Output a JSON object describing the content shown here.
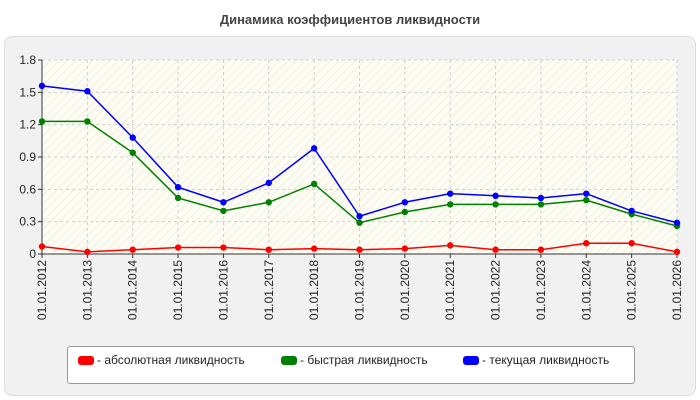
{
  "chart_data": {
    "type": "line",
    "title": "Динамика коэффициентов ликвидности",
    "categories": [
      "01.01.2012",
      "01.01.2013",
      "01.01.2014",
      "01.01.2015",
      "01.01.2016",
      "01.01.2017",
      "01.01.2018",
      "01.01.2019",
      "01.01.2020",
      "01.01.2021",
      "01.01.2022",
      "01.01.2023",
      "01.01.2024",
      "01.01.2025",
      "01.01.2026"
    ],
    "series": [
      {
        "name": "- абсолютная ликвидность",
        "color": "#ff0000",
        "values": [
          0.07,
          0.02,
          0.04,
          0.06,
          0.06,
          0.04,
          0.05,
          0.04,
          0.05,
          0.08,
          0.04,
          0.04,
          0.1,
          0.1,
          0.02
        ]
      },
      {
        "name": "- быстрая ликвидность",
        "color": "#008000",
        "values": [
          1.23,
          1.23,
          0.94,
          0.52,
          0.4,
          0.48,
          0.65,
          0.29,
          0.39,
          0.46,
          0.46,
          0.46,
          0.5,
          0.37,
          0.26
        ]
      },
      {
        "name": "- текущая ликвидность",
        "color": "#0000ff",
        "values": [
          1.56,
          1.51,
          1.08,
          0.62,
          0.48,
          0.66,
          0.98,
          0.35,
          0.48,
          0.56,
          0.54,
          0.52,
          0.56,
          0.4,
          0.29
        ]
      }
    ],
    "y_ticks": [
      "0",
      "0.3",
      "0.6",
      "0.9",
      "1.2",
      "1.5",
      "1.8"
    ],
    "ylim": [
      0,
      1.8
    ],
    "grid": true,
    "legend_position": "bottom"
  }
}
